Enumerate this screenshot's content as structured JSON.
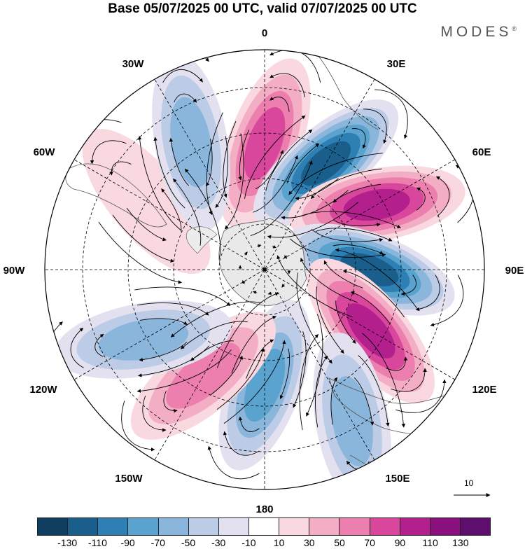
{
  "title": "Base 05/07/2025 00 UTC, valid 07/07/2025 00 UTC",
  "brand": {
    "name": "MODES",
    "mark": "®"
  },
  "longitude_labels": {
    "top": "0",
    "top_right": "30E",
    "right_upper": "60E",
    "right": "90E",
    "right_lower": "120E",
    "bottom_right": "150E",
    "bottom": "180",
    "bottom_left": "150W",
    "left_lower": "120W",
    "left": "90W",
    "left_upper": "60W",
    "top_left": "30W"
  },
  "reference_vector": {
    "label": "10"
  },
  "colorbar": {
    "colors": [
      "#0e3f5f",
      "#1a5f8c",
      "#2e7fb4",
      "#5aa3cf",
      "#8ab6dc",
      "#bccbe6",
      "#e3e1f0",
      "#ffffff",
      "#f9d8e0",
      "#f3aec6",
      "#ec7fae",
      "#d9479c",
      "#b41f8e",
      "#89107d",
      "#5e0f6d"
    ],
    "tick_labels": [
      "-130",
      "-110",
      "-90",
      "-70",
      "-50",
      "-30",
      "-10",
      "10",
      "30",
      "50",
      "70",
      "90",
      "110",
      "130"
    ]
  },
  "chart_data": {
    "type": "map",
    "projection": "south polar stereographic",
    "field": "shaded anomaly with streamlines",
    "colorbar_levels": [
      -130,
      -110,
      -90,
      -70,
      -50,
      -30,
      -10,
      10,
      30,
      50,
      70,
      90,
      110,
      130
    ],
    "extreme_centers": [
      {
        "longitude": "0",
        "sign": "positive",
        "magnitude": 90
      },
      {
        "longitude": "30E",
        "sign": "negative",
        "magnitude": -130
      },
      {
        "longitude": "60E",
        "sign": "positive",
        "magnitude": 110
      },
      {
        "longitude": "90E",
        "sign": "negative",
        "magnitude": -130
      },
      {
        "longitude": "120E",
        "sign": "positive",
        "magnitude": 110
      },
      {
        "longitude": "150E",
        "sign": "negative",
        "magnitude": -70
      },
      {
        "longitude": "180",
        "sign": "negative",
        "magnitude": -90
      },
      {
        "longitude": "150W",
        "sign": "positive",
        "magnitude": 70
      },
      {
        "longitude": "120W",
        "sign": "negative",
        "magnitude": -70
      },
      {
        "longitude": "60W",
        "sign": "positive",
        "magnitude": 30
      },
      {
        "longitude": "30W",
        "sign": "negative",
        "magnitude": -70
      }
    ]
  }
}
